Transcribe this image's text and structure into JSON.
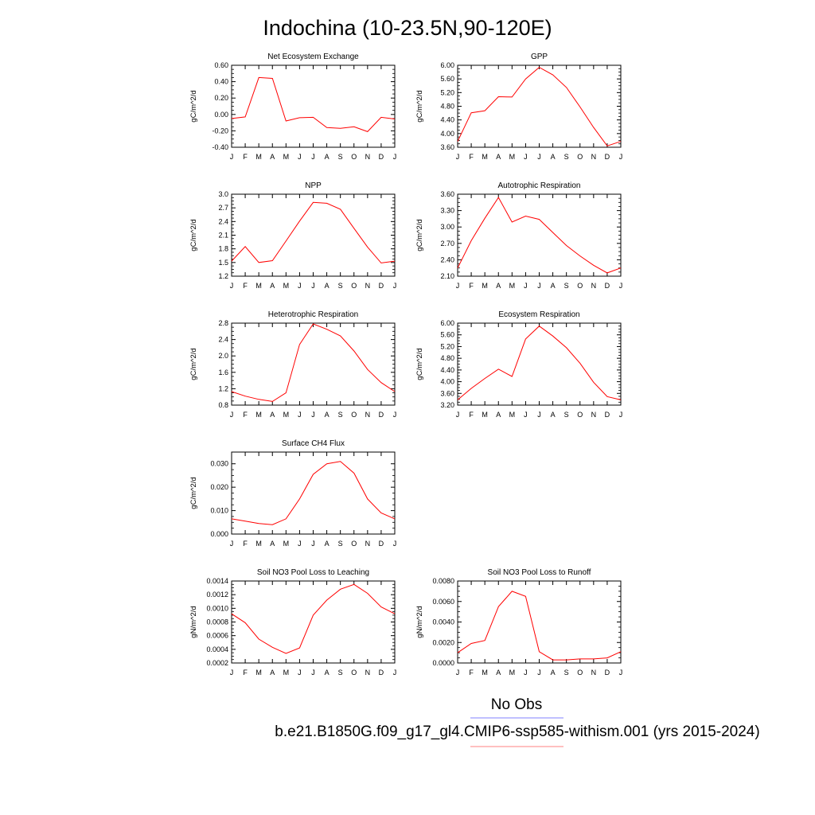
{
  "figure": {
    "title": "Indochina (10-23.5N,90-120E)",
    "legend": [
      {
        "label": "No Obs",
        "color": "#8080ff"
      },
      {
        "label": "b.e21.B1850G.f09_g17_gl4.CMIP6-ssp585-withism.001 (yrs 2015-2024)",
        "color": "#ff8080"
      }
    ],
    "line_color": "#ff0000"
  },
  "chart_data": [
    {
      "type": "line",
      "title": "Net Ecosystem Exchange",
      "ylabel": "gC/m^2/d",
      "categories": [
        "J",
        "F",
        "M",
        "A",
        "M",
        "J",
        "J",
        "A",
        "S",
        "O",
        "N",
        "D",
        "J"
      ],
      "yticks": [
        "-0.40",
        "-0.20",
        "0.00",
        "0.20",
        "0.40",
        "0.60"
      ],
      "ylim": [
        -0.4,
        0.6
      ],
      "series": [
        {
          "values": [
            -0.05,
            -0.03,
            0.45,
            0.44,
            -0.08,
            -0.04,
            -0.035,
            -0.16,
            -0.17,
            -0.15,
            -0.21,
            -0.035,
            -0.055
          ]
        }
      ]
    },
    {
      "type": "line",
      "title": "GPP",
      "ylabel": "gC/m^2/d",
      "categories": [
        "J",
        "F",
        "M",
        "A",
        "M",
        "J",
        "J",
        "A",
        "S",
        "O",
        "N",
        "D",
        "J"
      ],
      "yticks": [
        "3.60",
        "4.00",
        "4.40",
        "4.80",
        "5.20",
        "5.60",
        "6.00"
      ],
      "ylim": [
        3.6,
        6.0
      ],
      "series": [
        {
          "values": [
            3.77,
            4.61,
            4.67,
            5.08,
            5.07,
            5.6,
            5.94,
            5.72,
            5.35,
            4.78,
            4.18,
            3.64,
            3.77
          ]
        }
      ]
    },
    {
      "type": "line",
      "title": "NPP",
      "ylabel": "gC/m^2/d",
      "categories": [
        "J",
        "F",
        "M",
        "A",
        "M",
        "J",
        "J",
        "A",
        "S",
        "O",
        "N",
        "D",
        "J"
      ],
      "yticks": [
        "1.2",
        "1.5",
        "1.8",
        "2.1",
        "2.4",
        "2.7",
        "3.0"
      ],
      "ylim": [
        1.2,
        3.0
      ],
      "series": [
        {
          "values": [
            1.53,
            1.85,
            1.5,
            1.54,
            1.97,
            2.41,
            2.82,
            2.8,
            2.67,
            2.25,
            1.84,
            1.49,
            1.53
          ]
        }
      ]
    },
    {
      "type": "line",
      "title": "Autotrophic Respiration",
      "ylabel": "gC/m^2/d",
      "categories": [
        "J",
        "F",
        "M",
        "A",
        "M",
        "J",
        "J",
        "A",
        "S",
        "O",
        "N",
        "D",
        "J"
      ],
      "yticks": [
        "2.10",
        "2.40",
        "2.70",
        "3.00",
        "3.30",
        "3.60"
      ],
      "ylim": [
        2.1,
        3.6
      ],
      "series": [
        {
          "values": [
            2.25,
            2.75,
            3.16,
            3.54,
            3.09,
            3.2,
            3.14,
            2.9,
            2.66,
            2.47,
            2.3,
            2.16,
            2.25
          ]
        }
      ]
    },
    {
      "type": "line",
      "title": "Heterotrophic Respiration",
      "ylabel": "gC/m^2/d",
      "categories": [
        "J",
        "F",
        "M",
        "A",
        "M",
        "J",
        "J",
        "A",
        "S",
        "O",
        "N",
        "D",
        "J"
      ],
      "yticks": [
        "0.8",
        "1.2",
        "1.6",
        "2.0",
        "2.4",
        "2.8"
      ],
      "ylim": [
        0.8,
        2.8
      ],
      "series": [
        {
          "values": [
            1.13,
            1.02,
            0.94,
            0.89,
            1.1,
            2.28,
            2.78,
            2.65,
            2.49,
            2.12,
            1.67,
            1.35,
            1.13
          ]
        }
      ]
    },
    {
      "type": "line",
      "title": "Ecosystem Respiration",
      "ylabel": "gC/m^2/d",
      "categories": [
        "J",
        "F",
        "M",
        "A",
        "M",
        "J",
        "J",
        "A",
        "S",
        "O",
        "N",
        "D",
        "J"
      ],
      "yticks": [
        "3.20",
        "3.60",
        "4.00",
        "4.40",
        "4.80",
        "5.20",
        "5.60",
        "6.00"
      ],
      "ylim": [
        3.2,
        6.0
      ],
      "series": [
        {
          "values": [
            3.38,
            3.77,
            4.11,
            4.43,
            4.18,
            5.46,
            5.9,
            5.56,
            5.16,
            4.63,
            3.98,
            3.49,
            3.38
          ]
        }
      ]
    },
    {
      "type": "line",
      "title": "Surface CH4 Flux",
      "ylabel": "gC/m^2/d",
      "categories": [
        "J",
        "F",
        "M",
        "A",
        "M",
        "J",
        "J",
        "A",
        "S",
        "O",
        "N",
        "D",
        "J"
      ],
      "yticks": [
        "0.000",
        "0.010",
        "0.020",
        "0.030"
      ],
      "ylim": [
        0.0,
        0.035
      ],
      "series": [
        {
          "values": [
            0.0065,
            0.0055,
            0.0045,
            0.004,
            0.0065,
            0.015,
            0.0255,
            0.03,
            0.031,
            0.026,
            0.015,
            0.009,
            0.0065
          ]
        }
      ]
    },
    {
      "type": "line",
      "title": "Soil NO3 Pool Loss to Leaching",
      "ylabel": "gN/m^2/d",
      "categories": [
        "J",
        "F",
        "M",
        "A",
        "M",
        "J",
        "J",
        "A",
        "S",
        "O",
        "N",
        "D",
        "J"
      ],
      "yticks": [
        "0.0002",
        "0.0004",
        "0.0006",
        "0.0008",
        "0.0010",
        "0.0012",
        "0.0014"
      ],
      "ylim": [
        0.0002,
        0.0014
      ],
      "series": [
        {
          "values": [
            0.00092,
            0.00079,
            0.00055,
            0.00043,
            0.00034,
            0.00042,
            0.0009,
            0.00112,
            0.00128,
            0.00135,
            0.00122,
            0.00102,
            0.00092
          ]
        }
      ]
    },
    {
      "type": "line",
      "title": "Soil NO3 Pool Loss to Runoff",
      "ylabel": "gN/m^2/d",
      "categories": [
        "J",
        "F",
        "M",
        "A",
        "M",
        "J",
        "J",
        "A",
        "S",
        "O",
        "N",
        "D",
        "J"
      ],
      "yticks": [
        "0.0000",
        "0.0020",
        "0.0040",
        "0.0060",
        "0.0080"
      ],
      "ylim": [
        0.0,
        0.008
      ],
      "series": [
        {
          "values": [
            0.001,
            0.0019,
            0.0022,
            0.0055,
            0.007,
            0.0065,
            0.0011,
            0.0003,
            0.0003,
            0.0004,
            0.0004,
            0.0005,
            0.0011
          ]
        }
      ]
    }
  ]
}
